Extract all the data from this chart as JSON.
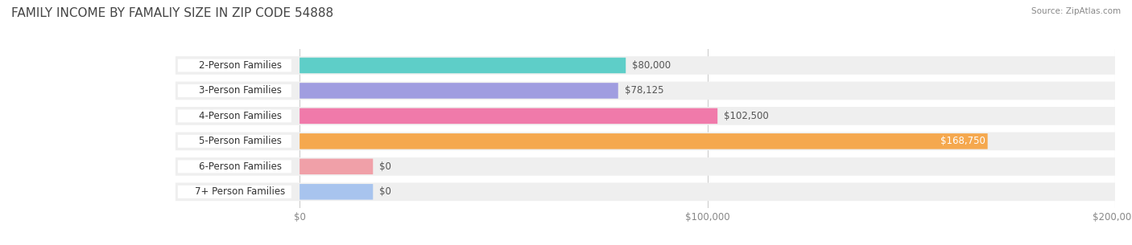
{
  "title": "FAMILY INCOME BY FAMALIY SIZE IN ZIP CODE 54888",
  "source": "Source: ZipAtlas.com",
  "categories": [
    "2-Person Families",
    "3-Person Families",
    "4-Person Families",
    "5-Person Families",
    "6-Person Families",
    "7+ Person Families"
  ],
  "values": [
    80000,
    78125,
    102500,
    168750,
    0,
    0
  ],
  "bar_colors": [
    "#5ecec8",
    "#a09de0",
    "#f07aaa",
    "#f5a84e",
    "#f0a0a8",
    "#a8c4ee"
  ],
  "row_bg_color": "#efefef",
  "xlim_max": 200000,
  "xtick_values": [
    0,
    100000,
    200000
  ],
  "xtick_labels": [
    "$0",
    "$100,000",
    "$200,000"
  ],
  "value_labels": [
    "$80,000",
    "$78,125",
    "$102,500",
    "$168,750",
    "$0",
    "$0"
  ],
  "value_inside": [
    false,
    false,
    false,
    true,
    false,
    false
  ],
  "bar_height": 0.62,
  "title_fontsize": 11,
  "label_fontsize": 8.5,
  "value_fontsize": 8.5,
  "zero_bar_width": 18000
}
